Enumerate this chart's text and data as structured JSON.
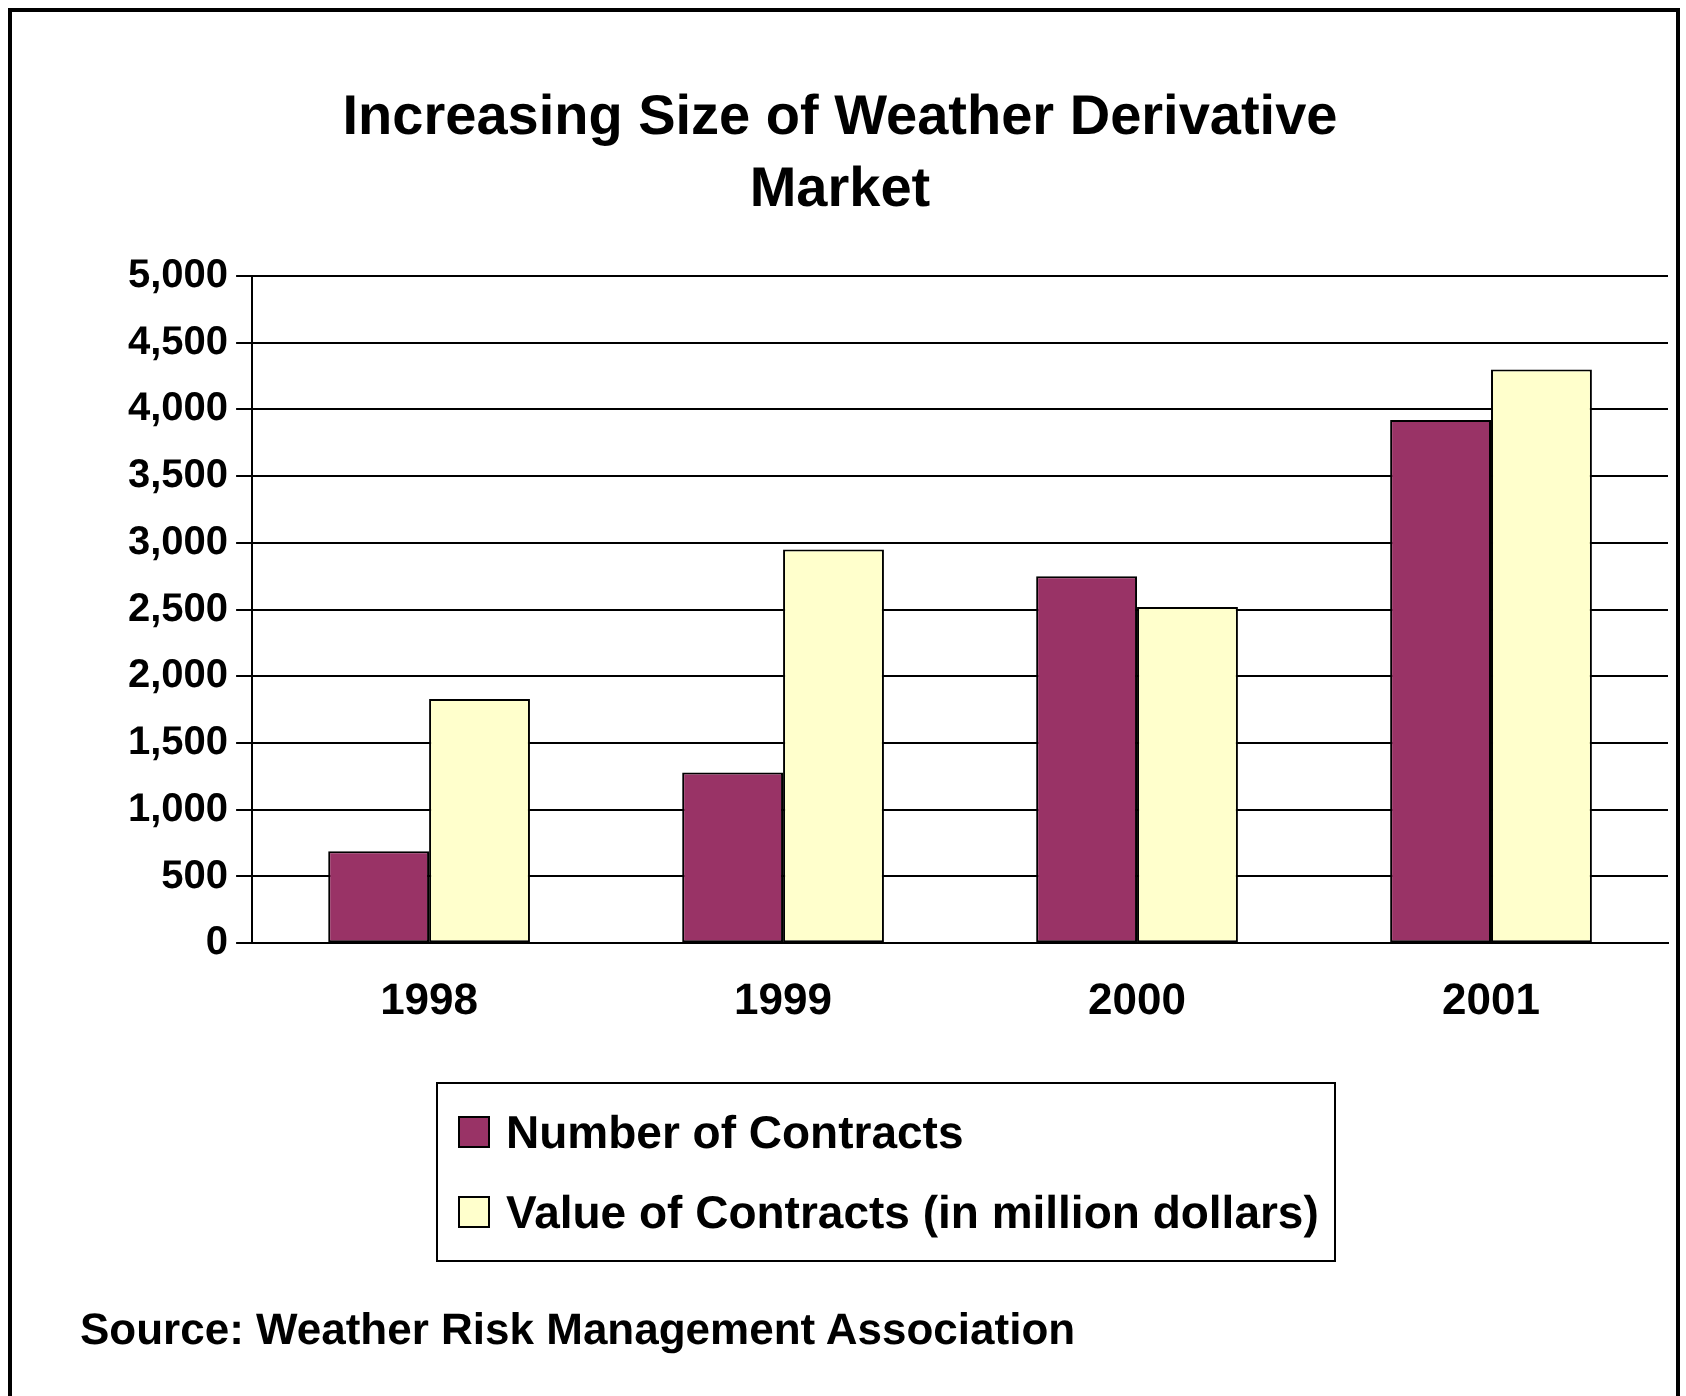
{
  "chart_data": {
    "type": "bar",
    "title": "Increasing Size of Weather Derivative Market",
    "categories": [
      "1998",
      "1999",
      "2000",
      "2001"
    ],
    "series": [
      {
        "name": "Number of Contracts",
        "color": "#993366",
        "values": [
          690,
          1280,
          2750,
          3920
        ]
      },
      {
        "name": "Value of Contracts (in million dollars)",
        "color": "#ffffcc",
        "values": [
          1830,
          2950,
          2520,
          4300
        ]
      }
    ],
    "ylim": [
      0,
      5000
    ],
    "yticks": [
      {
        "value": 0,
        "label": "0"
      },
      {
        "value": 500,
        "label": "500"
      },
      {
        "value": 1000,
        "label": "1,000"
      },
      {
        "value": 1500,
        "label": "1,500"
      },
      {
        "value": 2000,
        "label": "2,000"
      },
      {
        "value": 2500,
        "label": "2,500"
      },
      {
        "value": 3000,
        "label": "3,000"
      },
      {
        "value": 3500,
        "label": "3,500"
      },
      {
        "value": 4000,
        "label": "4,000"
      },
      {
        "value": 4500,
        "label": "4,500"
      },
      {
        "value": 5000,
        "label": "5,000"
      }
    ],
    "grid": "y",
    "legend": "bottom",
    "annotations": [
      "Source: Weather Risk Management Association"
    ]
  }
}
